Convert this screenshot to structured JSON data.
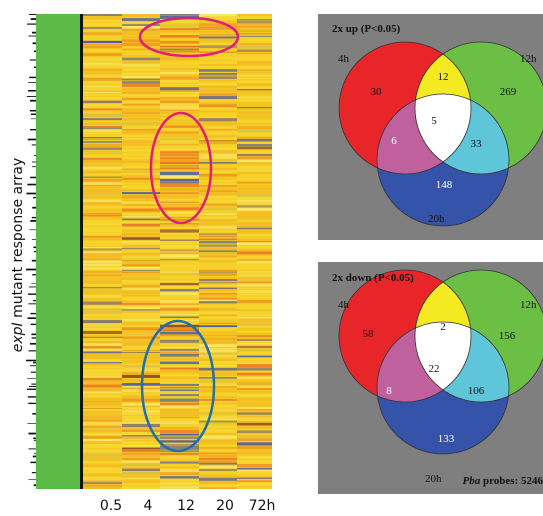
{
  "heatmap": {
    "y_label_italic": "expI",
    "y_label_rest": " mutant response array",
    "columns": [
      "0.5",
      "4",
      "12",
      "20",
      "72h"
    ],
    "colors": {
      "side_bar": "#5cbb46",
      "base": "#f5cc1e",
      "highlight_magenta": "#e01e7a",
      "highlight_blue": "#1f6fb0"
    }
  },
  "venn_up": {
    "title": "2x up (P<0.05)",
    "labels": {
      "a": "4h",
      "b": "12h",
      "c": "20h"
    },
    "counts": {
      "a_only": "30",
      "b_only": "269",
      "c_only": "148",
      "ab": "12",
      "ac": "6",
      "bc": "33",
      "abc": "5"
    }
  },
  "venn_down": {
    "title": "2x down (P<0.05)",
    "labels": {
      "a": "4h",
      "b": "12h",
      "c": "20h"
    },
    "counts": {
      "a_only": "58",
      "b_only": "156",
      "c_only": "133",
      "ab": "2",
      "ac": "8",
      "bc": "106",
      "abc": "22"
    },
    "footnote_italic": "Pba",
    "footnote_rest": " probes: 5246"
  },
  "venn_colors": {
    "panel": "#7f7f7f",
    "a": "#e8262a",
    "b": "#6cbf45",
    "c": "#3553a8",
    "ab": "#f4ea22",
    "ac": "#c0619e",
    "bc": "#5ec6d8",
    "abc": "#ffffff"
  }
}
